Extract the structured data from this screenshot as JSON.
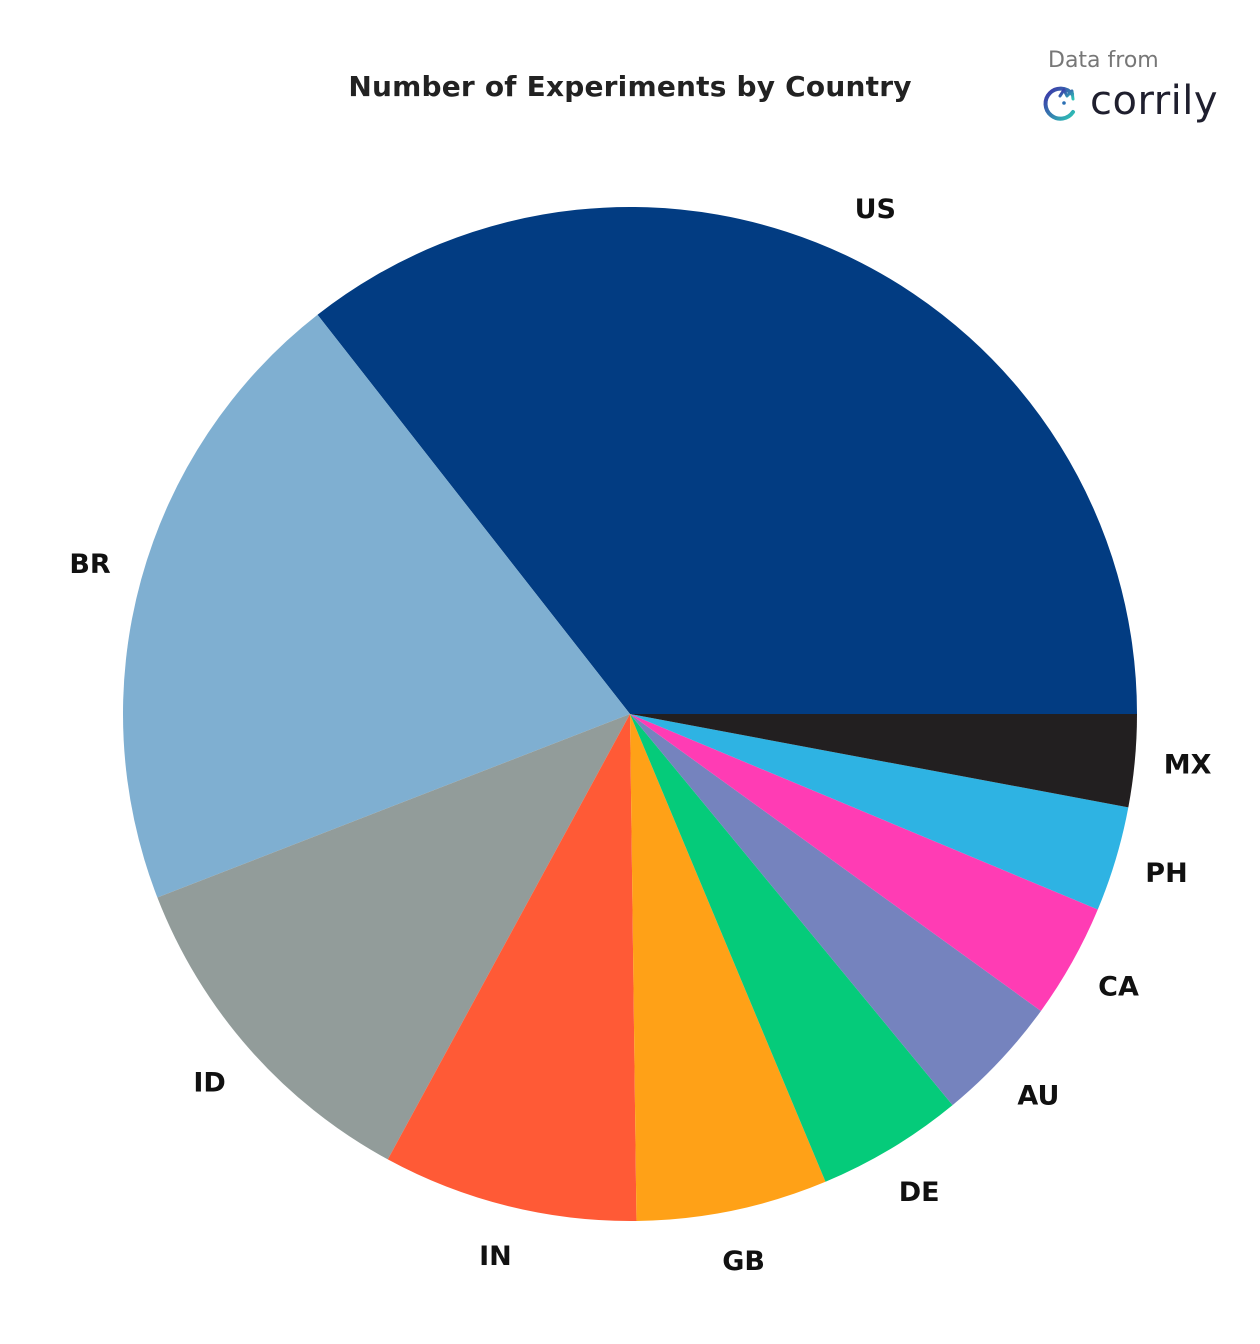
{
  "chart_data": {
    "type": "pie",
    "title": "Number of Experiments by Country",
    "slices": [
      {
        "label": "US",
        "value": 35.0,
        "color": "#023C82"
      },
      {
        "label": "BR",
        "value": 20.0,
        "color": "#7FAFD1"
      },
      {
        "label": "ID",
        "value": 11.0,
        "color": "#929C9A"
      },
      {
        "label": "IN",
        "value": 8.0,
        "color": "#FF5A36"
      },
      {
        "label": "GB",
        "value": 6.0,
        "color": "#FFA117"
      },
      {
        "label": "DE",
        "value": 4.6,
        "color": "#05CB7A"
      },
      {
        "label": "AU",
        "value": 4.0,
        "color": "#7583BE"
      },
      {
        "label": "CA",
        "value": 3.6,
        "color": "#FF3CB4"
      },
      {
        "label": "PH",
        "value": 3.3,
        "color": "#2EB3E3"
      },
      {
        "label": "MX",
        "value": 2.9,
        "color": "#221F20"
      }
    ]
  },
  "brand": {
    "caption": "Data from",
    "name": "corrily",
    "icon": "corrily-logo-icon"
  }
}
